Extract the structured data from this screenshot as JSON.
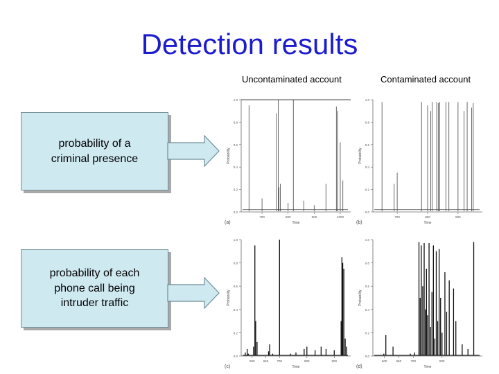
{
  "slide": {
    "title": "Detection results",
    "columns": [
      "Uncontaminated account",
      "Contaminated account"
    ],
    "rows": [
      {
        "label_lines": [
          "probability of a",
          "criminal presence"
        ]
      },
      {
        "label_lines": [
          "probability of each",
          "phone call being",
          "intruder traffic"
        ]
      }
    ]
  },
  "colors": {
    "title": "#1c1ccf",
    "box_fill": "#cfe9f1",
    "arrow_fill": "#cfe9f1"
  },
  "icons": [
    "right-arrow-icon"
  ],
  "chart_data": [
    {
      "panel": "(a)",
      "type": "line",
      "xlabel": "Time",
      "ylabel": "Probability",
      "ylim": [
        0,
        1.0
      ],
      "yticks": [
        "0.0",
        "0.2",
        "0.4",
        "0.6",
        "0.8",
        "1.0"
      ],
      "xticks": [
        "700",
        "800",
        "900",
        "1000"
      ],
      "xlim": [
        620,
        1040
      ],
      "baseline": 0.02,
      "spikes": [
        [
          650,
          0.95
        ],
        [
          700,
          0.12
        ],
        [
          755,
          0.88
        ],
        [
          762,
          1.0
        ],
        [
          765,
          0.22
        ],
        [
          770,
          0.25
        ],
        [
          800,
          0.08
        ],
        [
          820,
          1.0
        ],
        [
          860,
          0.1
        ],
        [
          900,
          0.06
        ],
        [
          945,
          0.25
        ],
        [
          985,
          0.94
        ],
        [
          990,
          0.9
        ],
        [
          1000,
          0.62
        ],
        [
          1010,
          0.28
        ]
      ]
    },
    {
      "panel": "(b)",
      "type": "line",
      "xlabel": "Time",
      "ylabel": "Probability",
      "ylim": [
        0,
        1.0
      ],
      "yticks": [
        "0.0",
        "0.2",
        "0.4",
        "0.6",
        "0.8",
        "1.0"
      ],
      "xticks": [
        "700",
        "800",
        "900"
      ],
      "xlim": [
        620,
        980
      ],
      "baseline": 0.02,
      "spikes": [
        [
          650,
          0.98
        ],
        [
          690,
          0.25
        ],
        [
          700,
          0.35
        ],
        [
          780,
          0.98
        ],
        [
          800,
          0.95
        ],
        [
          810,
          0.9
        ],
        [
          815,
          0.98
        ],
        [
          830,
          0.98
        ],
        [
          835,
          0.97
        ],
        [
          840,
          0.98
        ],
        [
          860,
          0.98
        ],
        [
          870,
          0.98
        ],
        [
          900,
          0.98
        ],
        [
          920,
          0.9
        ],
        [
          930,
          0.98
        ],
        [
          945,
          0.93
        ],
        [
          950,
          0.97
        ]
      ]
    },
    {
      "panel": "(c)",
      "type": "bar",
      "xlabel": "Time",
      "ylabel": "Probability",
      "ylim": [
        0,
        1.0
      ],
      "yticks": [
        "0.0",
        "0.2",
        "0.4",
        "0.6",
        "0.8",
        "1.0"
      ],
      "xticks": [
        "600",
        "650",
        "700",
        "800",
        "900"
      ],
      "xlim": [
        560,
        960
      ],
      "spikes": [
        [
          575,
          0.03
        ],
        [
          582,
          0.06
        ],
        [
          586,
          0.02
        ],
        [
          605,
          0.08
        ],
        [
          610,
          0.95
        ],
        [
          613,
          0.3
        ],
        [
          618,
          0.12
        ],
        [
          660,
          0.04
        ],
        [
          664,
          0.1
        ],
        [
          675,
          0.02
        ],
        [
          700,
          1.0
        ],
        [
          740,
          0.02
        ],
        [
          760,
          0.03
        ],
        [
          790,
          0.06
        ],
        [
          800,
          0.08
        ],
        [
          830,
          0.05
        ],
        [
          852,
          0.08
        ],
        [
          870,
          0.06
        ],
        [
          900,
          0.05
        ],
        [
          925,
          0.3
        ],
        [
          928,
          0.85
        ],
        [
          931,
          0.8
        ],
        [
          935,
          0.75
        ],
        [
          940,
          0.15
        ],
        [
          945,
          0.08
        ]
      ]
    },
    {
      "panel": "(d)",
      "type": "bar",
      "xlabel": "Time",
      "ylabel": "Probability",
      "ylim": [
        0,
        1.0
      ],
      "yticks": [
        "0.0",
        "0.2",
        "0.4",
        "0.6",
        "0.8",
        "1.0"
      ],
      "xticks": [
        "600",
        "650",
        "700",
        "800"
      ],
      "xlim": [
        560,
        940
      ],
      "spikes": [
        [
          598,
          0.02
        ],
        [
          605,
          0.18
        ],
        [
          630,
          0.08
        ],
        [
          690,
          0.02
        ],
        [
          705,
          0.03
        ],
        [
          720,
          0.98
        ],
        [
          724,
          0.5
        ],
        [
          728,
          0.95
        ],
        [
          733,
          0.6
        ],
        [
          738,
          0.97
        ],
        [
          742,
          0.4
        ],
        [
          746,
          0.75
        ],
        [
          750,
          0.35
        ],
        [
          755,
          0.97
        ],
        [
          760,
          0.25
        ],
        [
          765,
          0.55
        ],
        [
          770,
          0.95
        ],
        [
          775,
          0.15
        ],
        [
          780,
          0.9
        ],
        [
          785,
          0.3
        ],
        [
          790,
          0.92
        ],
        [
          795,
          0.5
        ],
        [
          800,
          0.2
        ],
        [
          810,
          0.72
        ],
        [
          816,
          0.38
        ],
        [
          825,
          0.65
        ],
        [
          840,
          0.58
        ],
        [
          848,
          0.3
        ],
        [
          870,
          0.1
        ],
        [
          890,
          0.06
        ],
        [
          910,
          0.98
        ]
      ]
    }
  ]
}
